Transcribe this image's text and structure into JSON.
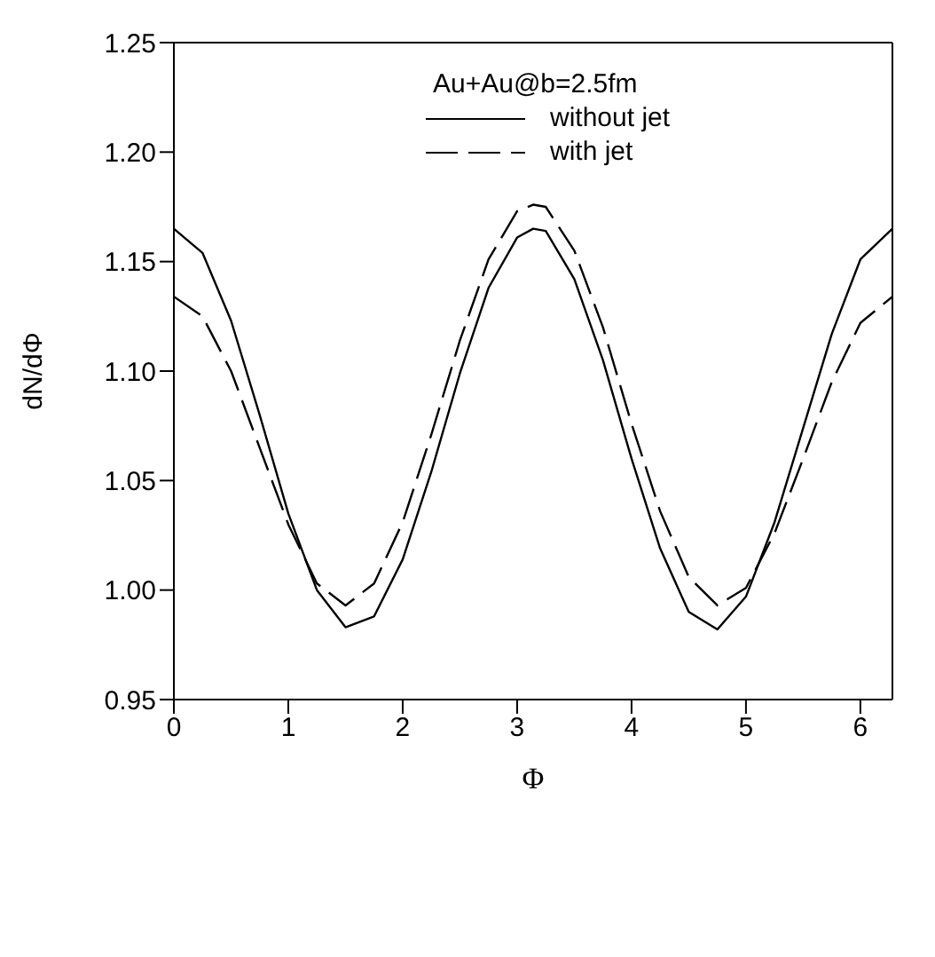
{
  "chart_data": {
    "type": "line",
    "xlabel": "Φ",
    "ylabel": "dN/dΦ",
    "legend_title": "Au+Au@b=2.5fm",
    "x": [
      0,
      0.25,
      0.5,
      0.75,
      1,
      1.25,
      1.5,
      1.75,
      2,
      2.25,
      2.5,
      2.75,
      3,
      3.14,
      3.25,
      3.5,
      3.75,
      4,
      4.25,
      4.5,
      4.75,
      5,
      5.25,
      5.5,
      5.75,
      6,
      6.28
    ],
    "series": [
      {
        "name": "without jet",
        "color": "#000000",
        "line_style": "solid",
        "values": [
          1.165,
          1.154,
          1.123,
          1.08,
          1.035,
          1.0,
          0.983,
          0.988,
          1.014,
          1.054,
          1.099,
          1.138,
          1.161,
          1.165,
          1.164,
          1.142,
          1.105,
          1.06,
          1.019,
          0.99,
          0.982,
          0.997,
          1.031,
          1.074,
          1.117,
          1.151,
          1.165
        ]
      },
      {
        "name": "with jet",
        "color": "#000000",
        "line_style": "dashed",
        "values": [
          1.134,
          1.125,
          1.1,
          1.065,
          1.03,
          1.003,
          0.993,
          1.003,
          1.031,
          1.071,
          1.114,
          1.151,
          1.173,
          1.176,
          1.175,
          1.155,
          1.12,
          1.076,
          1.036,
          1.006,
          0.993,
          1.001,
          1.026,
          1.06,
          1.095,
          1.122,
          1.134
        ]
      }
    ],
    "xlim": [
      0,
      6.28
    ],
    "xticks": [
      0,
      1,
      2,
      3,
      4,
      5,
      6
    ],
    "ylim": [
      0.95,
      1.25
    ],
    "yticks": [
      {
        "value": 0.95,
        "label": "0.95"
      },
      {
        "value": 1.0,
        "label": "1.00"
      },
      {
        "value": 1.05,
        "label": "1.05"
      },
      {
        "value": 1.1,
        "label": "1.10"
      },
      {
        "value": 1.15,
        "label": "1.15"
      },
      {
        "value": 1.2,
        "label": "1.20"
      },
      {
        "value": 1.25,
        "label": "1.25"
      }
    ],
    "grid": false,
    "legend": "top",
    "marker": "none"
  }
}
